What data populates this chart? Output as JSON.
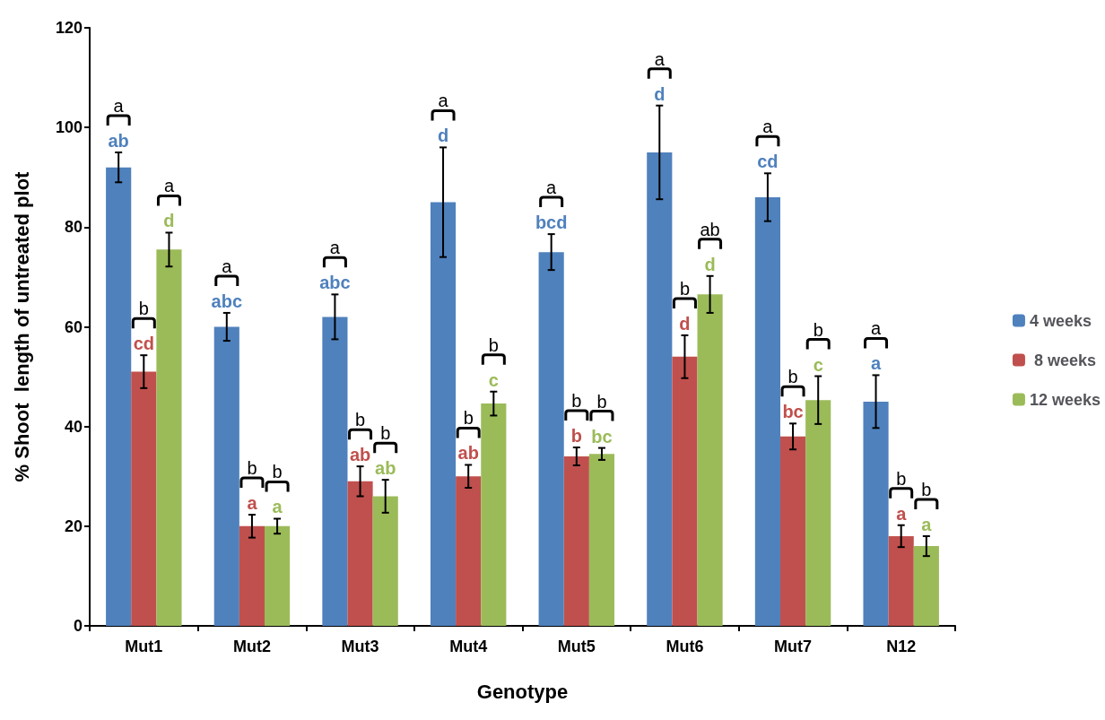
{
  "chart_data": {
    "type": "bar",
    "xlabel": "Genotype",
    "ylabel": "% Shoot  length of untreated plot",
    "categories": [
      "Mut1",
      "Mut2",
      "Mut3",
      "Mut4",
      "Mut5",
      "Mut6",
      "Mut7",
      "N12"
    ],
    "series": [
      {
        "name": "4 weeks",
        "color": "#4f81bd",
        "values": [
          92,
          60,
          62,
          85,
          75,
          95,
          86,
          45
        ],
        "errors": [
          3,
          2.8,
          4.5,
          11,
          3.6,
          9.4,
          4.8,
          5.3
        ]
      },
      {
        "name": " 8 weeks",
        "color": "#c0504d",
        "values": [
          51,
          20,
          29,
          30,
          34,
          54,
          38,
          18
        ],
        "errors": [
          3.3,
          2.3,
          3,
          2.3,
          1.8,
          4.3,
          2.6,
          2.2
        ]
      },
      {
        "name": "12 weeks",
        "color": "#9bbb59",
        "values": [
          75.5,
          20,
          26,
          44.6,
          34.5,
          66.5,
          45.3,
          16
        ],
        "errors": [
          3.4,
          1.5,
          3.3,
          2.4,
          1.2,
          3.7,
          4.8,
          2
        ]
      }
    ],
    "ylim": [
      0,
      120
    ],
    "yticks": [
      0,
      20,
      40,
      60,
      80,
      100,
      120
    ],
    "grid": false,
    "legend": "right",
    "annotations": [
      "ab",
      "a",
      "cd",
      "b",
      "d",
      "a",
      "abc",
      "a",
      "a",
      "b",
      "a",
      "b",
      "abc",
      "a",
      "ab",
      "b",
      "ab",
      "b",
      "d",
      "a",
      "ab",
      "b",
      "c",
      "b",
      "bcd",
      "a",
      "b",
      "b",
      "bc",
      "b",
      "d",
      "a",
      "d",
      "b",
      "d",
      "ab",
      "cd",
      "a",
      "bc",
      "b",
      "c",
      "b",
      "a",
      "a",
      "a",
      "b",
      "a",
      "b"
    ]
  }
}
